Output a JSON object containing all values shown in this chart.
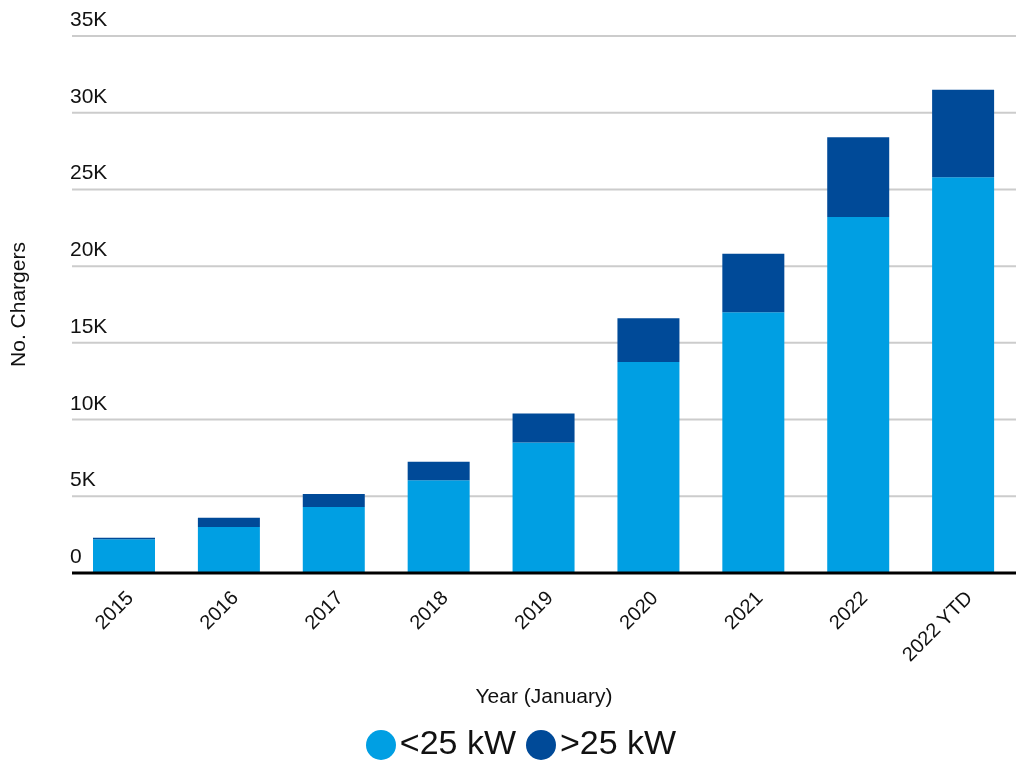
{
  "chart_data": {
    "type": "bar",
    "stacked": true,
    "xlabel": "Year (January)",
    "ylabel": "No. Chargers",
    "categories": [
      "2015",
      "2016",
      "2017",
      "2018",
      "2019",
      "2020",
      "2021",
      "2022",
      "2022 YTD"
    ],
    "series": [
      {
        "name": "<25 kW",
        "color": "#009fe3",
        "values": [
          2.2,
          3.0,
          4.3,
          6.05,
          8.5,
          13.75,
          17.0,
          23.2,
          25.8
        ]
      },
      {
        "name": ">25 kW",
        "color": "#004a98",
        "values": [
          0.1,
          0.6,
          0.85,
          1.2,
          1.9,
          2.85,
          3.8,
          5.2,
          5.7
        ]
      }
    ],
    "ylim": [
      0,
      35
    ],
    "yticks": [
      {
        "value": 0,
        "label": "0"
      },
      {
        "value": 5,
        "label": "5K"
      },
      {
        "value": 10,
        "label": "10K"
      },
      {
        "value": 15,
        "label": "15K"
      },
      {
        "value": 20,
        "label": "20K"
      },
      {
        "value": 25,
        "label": "25K"
      },
      {
        "value": 30,
        "label": "30K"
      },
      {
        "value": 35,
        "label": "35K"
      }
    ],
    "grid": "y",
    "legend": "bottom"
  }
}
